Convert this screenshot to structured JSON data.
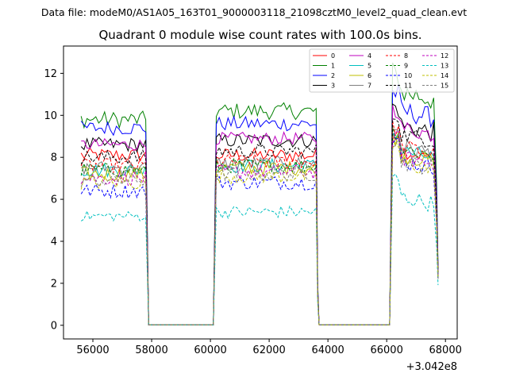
{
  "figure": {
    "suptitle": "Data file: modeM0/AS1A05_163T01_9000003118_21098cztM0_level2_quad_clean.evt"
  },
  "chart_data": {
    "type": "line",
    "title": "Quadrant 0 module wise count rates with 100.0s bins.",
    "xlabel": "",
    "ylabel": "",
    "x_offset_label": "+3.042e8",
    "xlim": [
      55000,
      68400
    ],
    "ylim": [
      -0.65,
      13.3
    ],
    "xticks": [
      56000,
      58000,
      60000,
      62000,
      64000,
      66000,
      68000
    ],
    "xtick_labels": [
      "56000",
      "58000",
      "60000",
      "62000",
      "64000",
      "66000",
      "68000"
    ],
    "yticks": [
      0,
      2,
      4,
      6,
      8,
      10,
      12
    ],
    "ytick_labels": [
      "0",
      "2",
      "4",
      "6",
      "8",
      "10",
      "12"
    ],
    "grid": false,
    "legend_position": "top-right",
    "legend_columns": 4,
    "segments": [
      {
        "start": 55600,
        "end": 57800
      },
      {
        "start": 60200,
        "end": 63600
      },
      {
        "start": 66200,
        "end": 67600
      }
    ],
    "gaps": [
      {
        "from": 57900,
        "to": 60100
      },
      {
        "from": 63700,
        "to": 66100
      }
    ],
    "bin_size": 100,
    "series": [
      {
        "name": "0",
        "color": "#ff0000",
        "dash": "solid",
        "segments": [
          {
            "mean": 8.1,
            "amp": 0.35
          },
          {
            "mean": 8.1,
            "amp": 0.35
          },
          {
            "mean": 8.4,
            "amp": 0.35
          }
        ]
      },
      {
        "name": "1",
        "color": "#008000",
        "dash": "solid",
        "segments": [
          {
            "mean": 9.8,
            "amp": 0.4
          },
          {
            "mean": 10.2,
            "amp": 0.4
          },
          {
            "mean": 11.2,
            "amp": 0.6
          }
        ]
      },
      {
        "name": "2",
        "color": "#0000ff",
        "dash": "solid",
        "segments": [
          {
            "mean": 9.4,
            "amp": 0.35
          },
          {
            "mean": 9.6,
            "amp": 0.35
          },
          {
            "mean": 10.3,
            "amp": 0.5
          }
        ]
      },
      {
        "name": "3",
        "color": "#000000",
        "dash": "solid",
        "segments": [
          {
            "mean": 8.6,
            "amp": 0.35
          },
          {
            "mean": 8.8,
            "amp": 0.35
          },
          {
            "mean": 9.6,
            "amp": 0.5
          }
        ]
      },
      {
        "name": "4",
        "color": "#bf00bf",
        "dash": "solid",
        "segments": [
          {
            "mean": 8.6,
            "amp": 0.3
          },
          {
            "mean": 8.9,
            "amp": 0.3
          },
          {
            "mean": 9.5,
            "amp": 0.4
          }
        ]
      },
      {
        "name": "5",
        "color": "#00bfbf",
        "dash": "solid",
        "segments": [
          {
            "mean": 7.4,
            "amp": 0.35
          },
          {
            "mean": 7.6,
            "amp": 0.35
          },
          {
            "mean": 8.4,
            "amp": 0.4
          }
        ]
      },
      {
        "name": "6",
        "color": "#bfbf00",
        "dash": "solid",
        "segments": [
          {
            "mean": 7.2,
            "amp": 0.35
          },
          {
            "mean": 7.5,
            "amp": 0.35
          },
          {
            "mean": 8.2,
            "amp": 0.4
          }
        ]
      },
      {
        "name": "7",
        "color": "#808080",
        "dash": "solid",
        "segments": [
          {
            "mean": 7.5,
            "amp": 0.35
          },
          {
            "mean": 7.7,
            "amp": 0.35
          },
          {
            "mean": 8.6,
            "amp": 0.4
          }
        ]
      },
      {
        "name": "8",
        "color": "#ff0000",
        "dash": "dashed",
        "segments": [
          {
            "mean": 7.6,
            "amp": 0.35
          },
          {
            "mean": 7.8,
            "amp": 0.35
          },
          {
            "mean": 8.6,
            "amp": 0.4
          }
        ]
      },
      {
        "name": "9",
        "color": "#008000",
        "dash": "dashed",
        "segments": [
          {
            "mean": 7.4,
            "amp": 0.35
          },
          {
            "mean": 7.6,
            "amp": 0.35
          },
          {
            "mean": 8.5,
            "amp": 0.4
          }
        ]
      },
      {
        "name": "10",
        "color": "#0000ff",
        "dash": "dashed",
        "segments": [
          {
            "mean": 6.4,
            "amp": 0.35
          },
          {
            "mean": 6.8,
            "amp": 0.35
          },
          {
            "mean": 7.9,
            "amp": 0.4
          }
        ]
      },
      {
        "name": "11",
        "color": "#000000",
        "dash": "dashed",
        "segments": [
          {
            "mean": 8.0,
            "amp": 0.35
          },
          {
            "mean": 8.3,
            "amp": 0.35
          },
          {
            "mean": 9.2,
            "amp": 0.4
          }
        ]
      },
      {
        "name": "12",
        "color": "#bf00bf",
        "dash": "dashed",
        "segments": [
          {
            "mean": 7.0,
            "amp": 0.35
          },
          {
            "mean": 7.3,
            "amp": 0.35
          },
          {
            "mean": 8.1,
            "amp": 0.4
          }
        ]
      },
      {
        "name": "13",
        "color": "#00bfbf",
        "dash": "dashed",
        "segments": [
          {
            "mean": 5.2,
            "amp": 0.25
          },
          {
            "mean": 5.4,
            "amp": 0.3
          },
          {
            "mean": 6.2,
            "amp": 0.4
          }
        ]
      },
      {
        "name": "14",
        "color": "#bfbf00",
        "dash": "dashed",
        "segments": [
          {
            "mean": 6.8,
            "amp": 0.35
          },
          {
            "mean": 7.1,
            "amp": 0.35
          },
          {
            "mean": 7.8,
            "amp": 0.4
          }
        ]
      },
      {
        "name": "15",
        "color": "#808080",
        "dash": "dashed",
        "segments": [
          {
            "mean": 6.9,
            "amp": 0.35
          },
          {
            "mean": 7.2,
            "amp": 0.35
          },
          {
            "mean": 7.9,
            "amp": 0.4
          }
        ]
      }
    ]
  }
}
